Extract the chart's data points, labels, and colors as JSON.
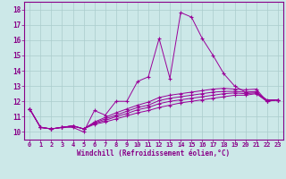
{
  "xlabel": "Windchill (Refroidissement éolien,°C)",
  "bg_color": "#cce8e8",
  "grid_color": "#aacccc",
  "line_color": "#990099",
  "xlim": [
    -0.5,
    23.5
  ],
  "ylim": [
    9.5,
    18.5
  ],
  "xticks": [
    0,
    1,
    2,
    3,
    4,
    5,
    6,
    7,
    8,
    9,
    10,
    11,
    12,
    13,
    14,
    15,
    16,
    17,
    18,
    19,
    20,
    21,
    22,
    23
  ],
  "yticks": [
    10,
    11,
    12,
    13,
    14,
    15,
    16,
    17,
    18
  ],
  "series": [
    [
      11.5,
      10.3,
      10.2,
      10.3,
      10.3,
      10.0,
      11.4,
      11.1,
      12.0,
      12.0,
      13.3,
      13.6,
      16.1,
      13.5,
      17.8,
      17.5,
      16.1,
      15.0,
      13.8,
      13.0,
      12.6,
      12.6,
      12.1,
      12.1
    ],
    [
      11.5,
      10.3,
      10.2,
      10.3,
      10.4,
      10.2,
      10.5,
      10.65,
      10.85,
      11.05,
      11.25,
      11.4,
      11.6,
      11.75,
      11.9,
      12.0,
      12.1,
      12.2,
      12.3,
      12.4,
      12.4,
      12.5,
      12.0,
      12.1
    ],
    [
      11.5,
      10.3,
      10.2,
      10.3,
      10.4,
      10.2,
      10.55,
      10.75,
      11.0,
      11.2,
      11.45,
      11.6,
      11.85,
      12.0,
      12.1,
      12.2,
      12.3,
      12.4,
      12.5,
      12.55,
      12.5,
      12.55,
      12.0,
      12.1
    ],
    [
      11.5,
      10.3,
      10.2,
      10.3,
      10.4,
      10.2,
      10.6,
      10.85,
      11.1,
      11.35,
      11.6,
      11.75,
      12.05,
      12.2,
      12.3,
      12.4,
      12.5,
      12.6,
      12.65,
      12.65,
      12.6,
      12.65,
      12.0,
      12.1
    ],
    [
      11.5,
      10.3,
      10.2,
      10.3,
      10.4,
      10.2,
      10.65,
      10.95,
      11.25,
      11.5,
      11.75,
      11.95,
      12.25,
      12.4,
      12.5,
      12.6,
      12.7,
      12.8,
      12.85,
      12.8,
      12.75,
      12.8,
      12.0,
      12.1
    ]
  ]
}
